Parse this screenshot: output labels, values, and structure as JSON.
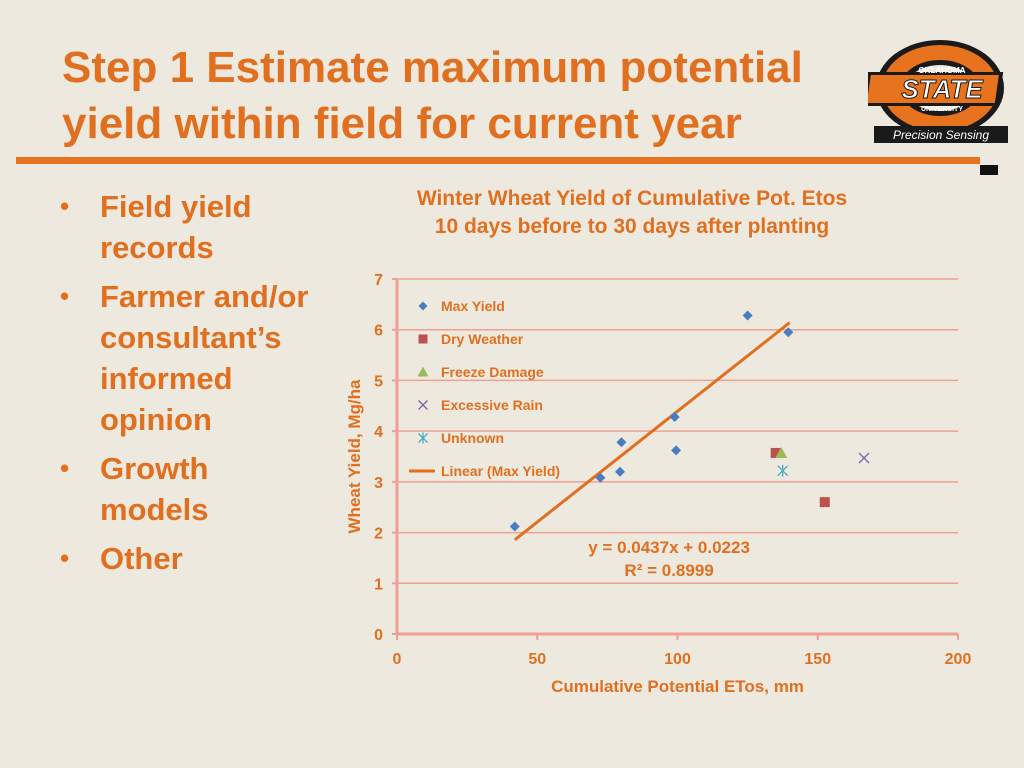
{
  "slide": {
    "title_line1": "Step 1 Estimate maximum potential",
    "title_line2": "yield within field for current year",
    "logo": {
      "top_text": "OKLAHOMA",
      "main_text": "STATE",
      "sub_text": "UNIVERSITY",
      "caption": "Precision Sensing"
    },
    "bullets": [
      "Field yield records",
      "Farmer and/or consultant’s informed opinion",
      "Growth models",
      "Other"
    ]
  },
  "colors": {
    "accent": "#e07020",
    "axis": "#f0a090",
    "max_yield": "#4a7cc0",
    "dry_weather": "#c0504d",
    "freeze_damage": "#9bbb59",
    "excessive_rain": "#8064a2",
    "unknown": "#4bacc6",
    "trendline": "#e07020"
  },
  "chart_data": {
    "type": "scatter",
    "title_line1": "Winter Wheat Yield of Cumulative Pot. Etos",
    "title_line2": "10 days before to 30 days after planting",
    "xlabel": "Cumulative Potential ETos, mm",
    "ylabel": "Wheat Yield, Mg/ha",
    "xlim": [
      0,
      200
    ],
    "ylim": [
      0,
      7
    ],
    "xticks": [
      "0",
      "50",
      "100",
      "150",
      "200"
    ],
    "yticks": [
      "0",
      "1",
      "2",
      "3",
      "4",
      "5",
      "6",
      "7"
    ],
    "grid": "horizontal",
    "legend_position": "top-left",
    "series": [
      {
        "name": "Max Yield",
        "marker": "diamond",
        "points": [
          [
            42,
            2.12
          ],
          [
            72.5,
            3.08
          ],
          [
            79.5,
            3.2
          ],
          [
            80,
            3.78
          ],
          [
            99,
            4.28
          ],
          [
            99.5,
            3.62
          ],
          [
            125,
            6.28
          ],
          [
            139.5,
            5.95
          ]
        ]
      },
      {
        "name": "Dry Weather",
        "marker": "square",
        "points": [
          [
            135,
            3.57
          ],
          [
            152.5,
            2.6
          ]
        ]
      },
      {
        "name": "Freeze Damage",
        "marker": "triangle",
        "points": [
          [
            137,
            3.57
          ]
        ]
      },
      {
        "name": "Excessive Rain",
        "marker": "x",
        "points": [
          [
            166.5,
            3.47
          ]
        ]
      },
      {
        "name": "Unknown",
        "marker": "star",
        "points": [
          [
            137.5,
            3.22
          ]
        ]
      }
    ],
    "trendline": {
      "name": "Linear (Max Yield)",
      "x_range": [
        42,
        140
      ],
      "equation": "y = 0.0437x + 0.0223",
      "r2": "R² = 0.8999"
    }
  }
}
